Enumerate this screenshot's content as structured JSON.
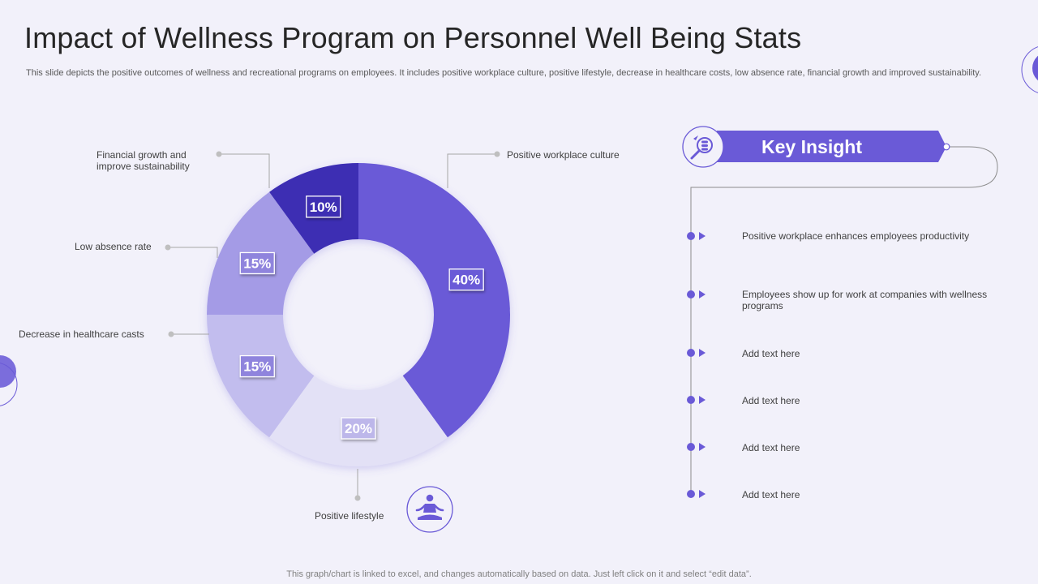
{
  "page": {
    "title": "Impact of Wellness Program on Personnel Well Being Stats",
    "subtitle": "This slide depicts the positive outcomes of wellness and recreational programs on employees. It includes positive workplace culture, positive lifestyle, decrease in healthcare costs, low absence rate, financial growth and improved sustainability.",
    "footer": "This graph/chart is linked to excel,  and changes automatically based on data. Just left click on it and select “edit data”."
  },
  "chart_data": {
    "type": "pie",
    "variant": "donut",
    "title": "",
    "categories": [
      "Positive workplace culture",
      "Positive lifestyle",
      "Decrease in healthcare casts",
      "Low absence rate",
      "Financial growth and improve sustainability"
    ],
    "values": [
      40,
      20,
      15,
      15,
      10
    ],
    "labels": [
      "40%",
      "20%",
      "15%",
      "15%",
      "10%"
    ],
    "colors": [
      "#6a5ad7",
      "#e3e1f6",
      "#c2bdee",
      "#a49be6",
      "#3c2db3"
    ]
  },
  "callouts": {
    "workplace": "Positive workplace culture",
    "lifestyle": "Positive lifestyle",
    "healthcare": "Decrease in healthcare casts",
    "absence": "Low absence rate",
    "financial_line1": "Financial growth and",
    "financial_line2": "improve sustainability"
  },
  "insight": {
    "title": "Key Insight",
    "items": [
      "Positive workplace enhances employees productivity",
      "Employees show up for work at companies with wellness programs",
      "Add text here",
      "Add text here",
      "Add text here",
      "Add text here"
    ]
  },
  "icons": {
    "insight": "analysis-magnifier-icon",
    "lifestyle": "meditation-person-icon"
  },
  "colors": {
    "accent": "#6a5ad7",
    "dark": "#3c2db3",
    "background": "#f2f1fa"
  }
}
